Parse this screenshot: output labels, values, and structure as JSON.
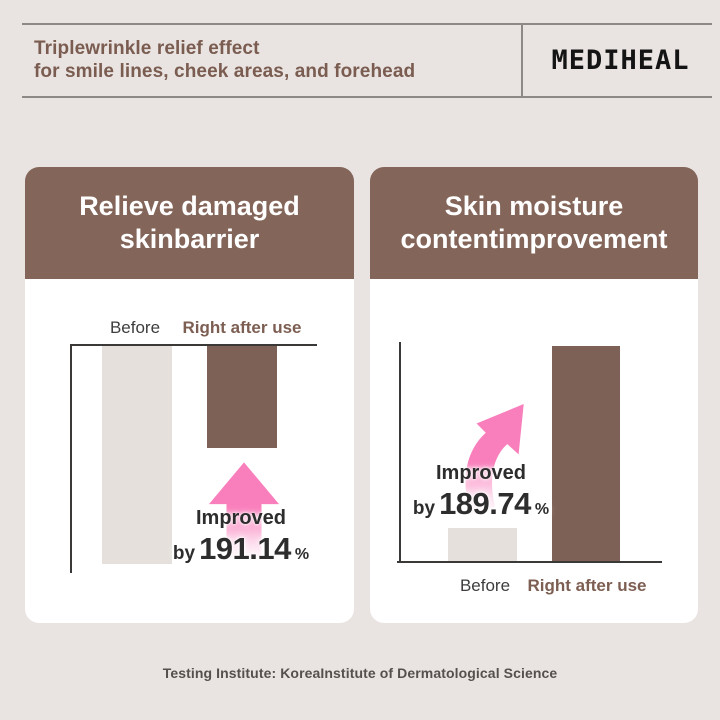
{
  "header": {
    "title_line1": "Triplewrinkle relief effect",
    "title_line2": "for smile lines, cheek areas, and forehead",
    "brand": "MEDIHEAL"
  },
  "footer": {
    "text": "Testing Institute: KoreaInstitute of Dermatological Science"
  },
  "colors": {
    "page_bg": "#e9e4e1",
    "card_bg": "#ffffff",
    "card_header_brown": "#84655a",
    "bar_brown": "#7e6156",
    "bar_gray": "#e5e0dc",
    "arrow_pink": "#f97fbc",
    "label_brown": "#7d5e52",
    "text_dark": "#2d2d2d",
    "rule_gray": "#8d8987"
  },
  "chart_data": [
    {
      "type": "bar",
      "title_line1": "Relieve damaged",
      "title_line2": "skinbarrier",
      "categories": [
        "Before",
        "Right after use"
      ],
      "values_pct": [
        96,
        45
      ],
      "bars_anchor": "top",
      "labels_position": "above-plot",
      "legend_position": "none",
      "grid": false,
      "annotation": {
        "label": "Improved",
        "prefix": "by",
        "value": "191.14",
        "unit": "%"
      }
    },
    {
      "type": "bar",
      "title_line1": "Skin moisture",
      "title_line2": "contentimprovement",
      "categories": [
        "Before",
        "Right after use"
      ],
      "values_pct": [
        15,
        98
      ],
      "bars_anchor": "bottom",
      "labels_position": "below-plot",
      "legend_position": "none",
      "grid": false,
      "annotation": {
        "label": "Improved",
        "prefix": "by",
        "value": "189.74",
        "unit": "%"
      }
    }
  ]
}
